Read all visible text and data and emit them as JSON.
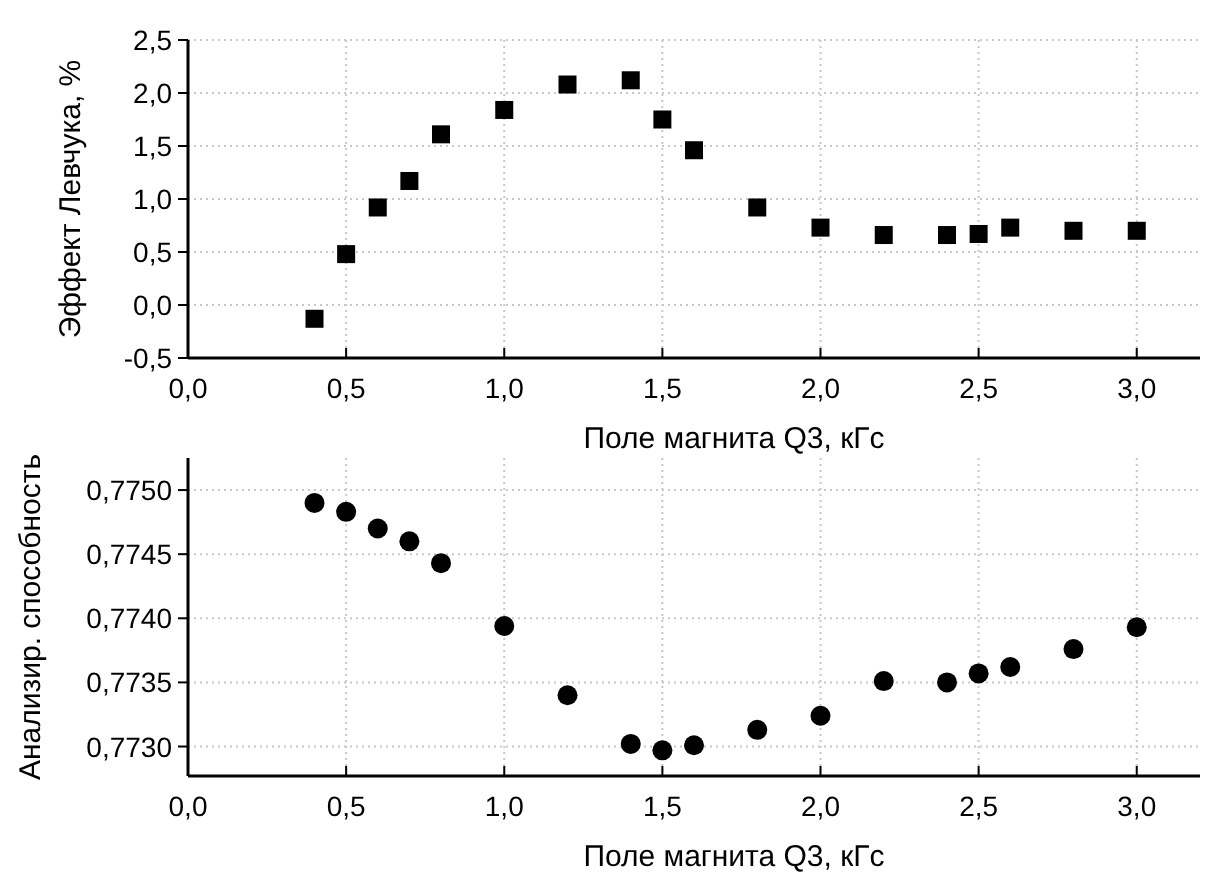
{
  "chart_data": [
    {
      "type": "scatter",
      "xlabel": "Поле магнита Q3, кГс",
      "ylabel": "Эффект Левчука, %",
      "marker": "square",
      "grid": true,
      "x": [
        0.4,
        0.5,
        0.6,
        0.7,
        0.8,
        1.0,
        1.2,
        1.4,
        1.5,
        1.6,
        1.8,
        2.0,
        2.2,
        2.4,
        2.5,
        2.6,
        2.8,
        3.0
      ],
      "series": [
        {
          "color": "#000000",
          "values": [
            -0.13,
            0.48,
            0.92,
            1.17,
            1.61,
            1.84,
            2.08,
            2.12,
            1.75,
            1.46,
            0.92,
            0.73,
            0.66,
            0.66,
            0.67,
            0.73,
            0.7,
            0.7
          ]
        }
      ],
      "xlim": [
        0,
        3.2
      ],
      "ylim": [
        -0.5,
        2.5
      ],
      "xticks": [
        {
          "value": 0,
          "label": "0,0"
        },
        {
          "value": 0.5,
          "label": "0,5"
        },
        {
          "value": 1,
          "label": "1,0"
        },
        {
          "value": 1.5,
          "label": "1,5"
        },
        {
          "value": 2,
          "label": "2,0"
        },
        {
          "value": 2.5,
          "label": "2,5"
        },
        {
          "value": 3,
          "label": "3,0"
        }
      ],
      "yticks": [
        {
          "value": -0.5,
          "label": "-0,5"
        },
        {
          "value": 0,
          "label": "0,0"
        },
        {
          "value": 0.5,
          "label": "0,5"
        },
        {
          "value": 1,
          "label": "1,0"
        },
        {
          "value": 1.5,
          "label": "1,5"
        },
        {
          "value": 2,
          "label": "2,0"
        },
        {
          "value": 2.5,
          "label": "2,5"
        }
      ]
    },
    {
      "type": "scatter",
      "xlabel": "Поле магнита Q3, кГс",
      "ylabel": "Анализир. способность",
      "marker": "circle",
      "grid": true,
      "x": [
        0.4,
        0.5,
        0.6,
        0.7,
        0.8,
        1.0,
        1.2,
        1.4,
        1.5,
        1.6,
        1.8,
        2.0,
        2.2,
        2.4,
        2.5,
        2.6,
        2.8,
        3.0
      ],
      "series": [
        {
          "color": "#000000",
          "values": [
            0.7749,
            0.77483,
            0.7747,
            0.7746,
            0.77443,
            0.77394,
            0.7734,
            0.77302,
            0.77297,
            0.77301,
            0.77313,
            0.77324,
            0.77351,
            0.7735,
            0.77357,
            0.77362,
            0.77376,
            0.77393
          ]
        }
      ],
      "xlim": [
        0,
        3.2
      ],
      "ylim": [
        0.77277,
        0.77525
      ],
      "xticks": [
        {
          "value": 0,
          "label": "0,0"
        },
        {
          "value": 0.5,
          "label": "0,5"
        },
        {
          "value": 1,
          "label": "1,0"
        },
        {
          "value": 1.5,
          "label": "1,5"
        },
        {
          "value": 2,
          "label": "2,0"
        },
        {
          "value": 2.5,
          "label": "2,5"
        },
        {
          "value": 3,
          "label": "3,0"
        }
      ],
      "yticks": [
        {
          "value": 0.773,
          "label": "0,7730"
        },
        {
          "value": 0.7735,
          "label": "0,7735"
        },
        {
          "value": 0.774,
          "label": "0,7740"
        },
        {
          "value": 0.7745,
          "label": "0,7745"
        },
        {
          "value": 0.775,
          "label": "0,7750"
        }
      ]
    }
  ]
}
